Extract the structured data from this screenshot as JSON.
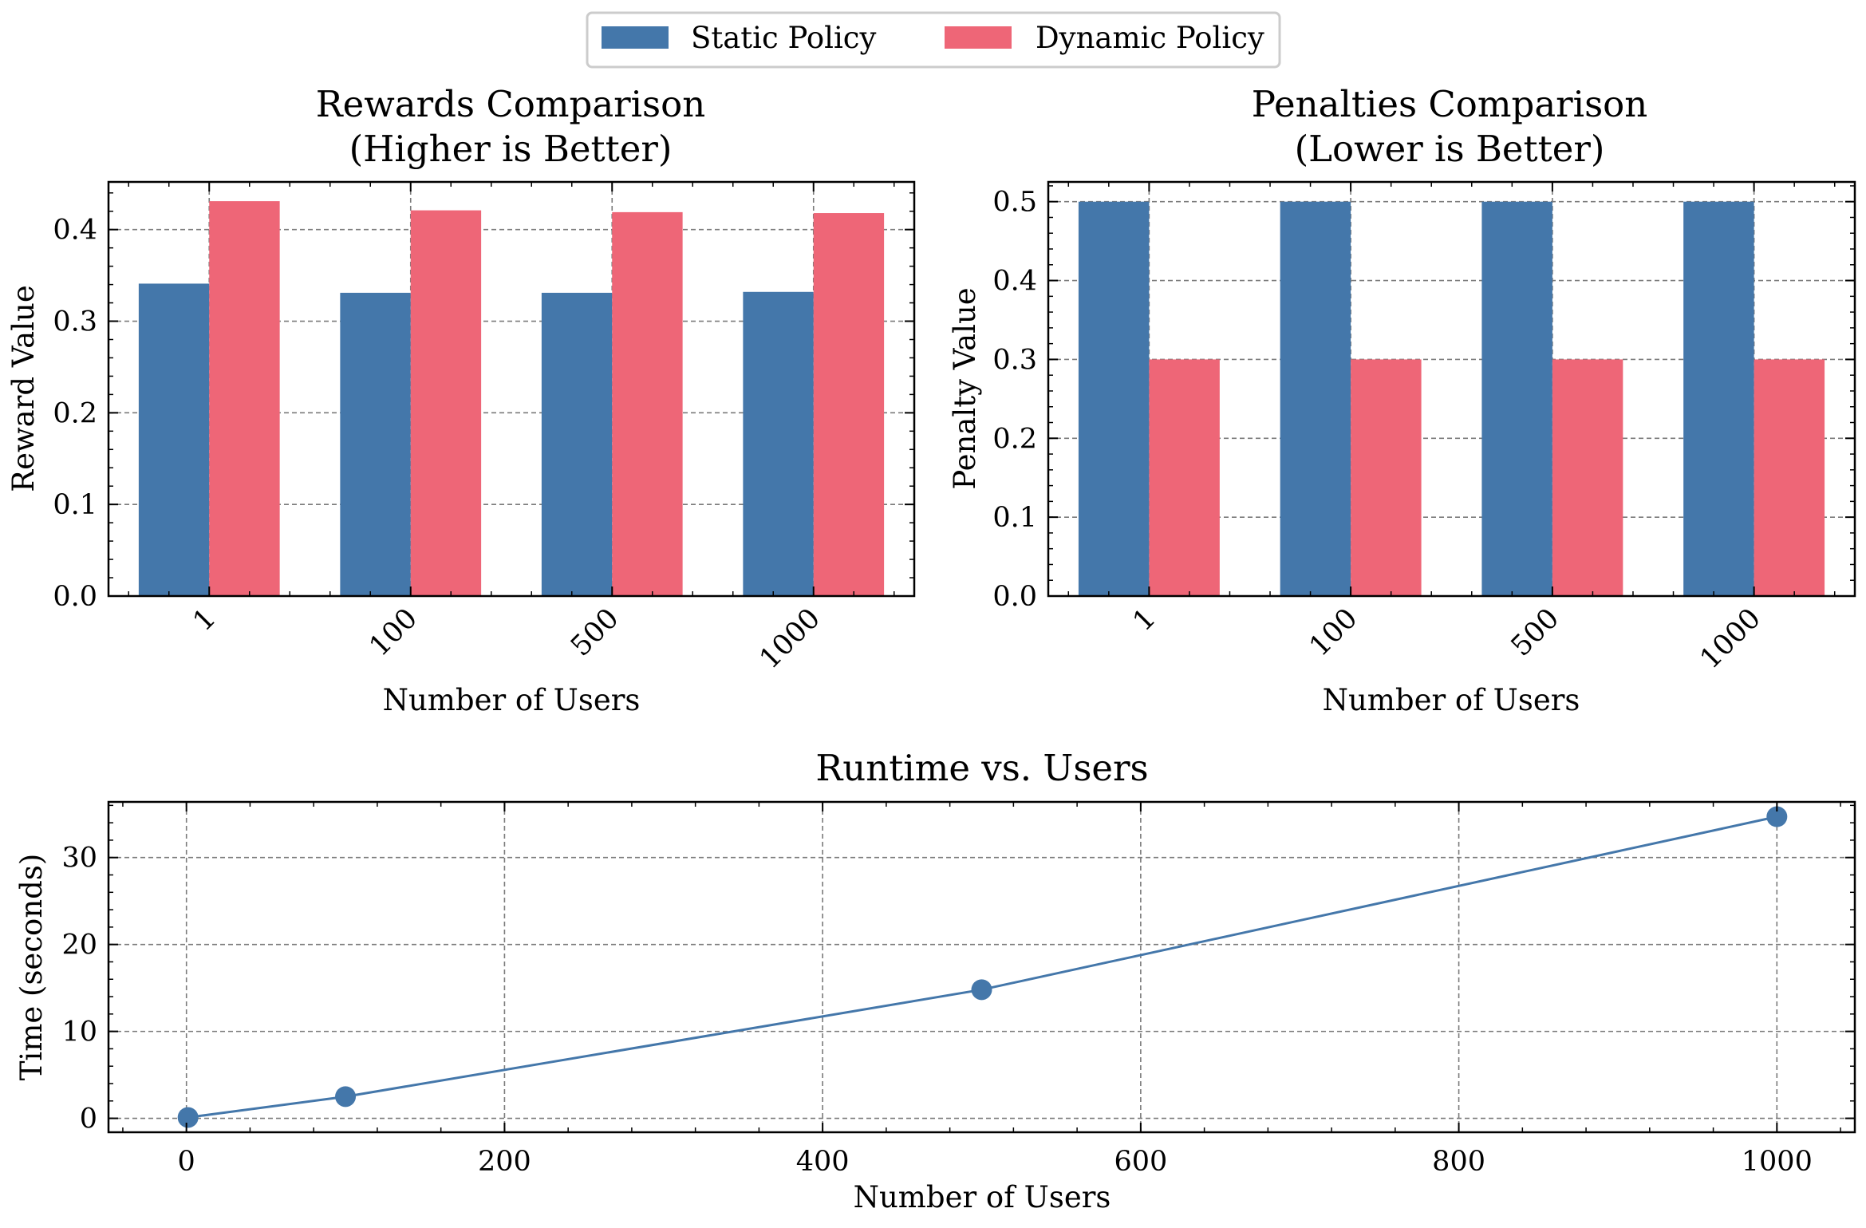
{
  "legend": {
    "entries": [
      {
        "label": "Static Policy",
        "color": "#4477AA"
      },
      {
        "label": "Dynamic Policy",
        "color": "#EE6677"
      }
    ],
    "placement": "top-center"
  },
  "chart_data": [
    {
      "type": "bar",
      "title_line1": "Rewards Comparison",
      "title_line2": "(Higher is Better)",
      "xlabel": "Number of Users",
      "ylabel": "Reward Value",
      "categories": [
        "1",
        "100",
        "500",
        "1000"
      ],
      "series": [
        {
          "name": "Static Policy",
          "values": [
            0.341,
            0.331,
            0.331,
            0.332
          ],
          "color": "#4477AA"
        },
        {
          "name": "Dynamic Policy",
          "values": [
            0.431,
            0.421,
            0.419,
            0.418
          ],
          "color": "#EE6677"
        }
      ],
      "ylim": [
        0,
        0.452
      ],
      "yticks": [
        "0.0",
        "0.1",
        "0.2",
        "0.3",
        "0.4"
      ],
      "grid": true
    },
    {
      "type": "bar",
      "title_line1": "Penalties Comparison",
      "title_line2": "(Lower is Better)",
      "xlabel": "Number of Users",
      "ylabel": "Penalty Value",
      "categories": [
        "1",
        "100",
        "500",
        "1000"
      ],
      "series": [
        {
          "name": "Static Policy",
          "values": [
            0.5,
            0.5,
            0.5,
            0.5
          ],
          "color": "#4477AA"
        },
        {
          "name": "Dynamic Policy",
          "values": [
            0.3,
            0.3,
            0.3,
            0.3
          ],
          "color": "#EE6677"
        }
      ],
      "ylim": [
        0,
        0.525
      ],
      "yticks": [
        "0.0",
        "0.1",
        "0.2",
        "0.3",
        "0.4",
        "0.5"
      ],
      "grid": true
    },
    {
      "type": "line",
      "title_line1": "Runtime vs. Users",
      "xlabel": "Number of Users",
      "ylabel": "Time (seconds)",
      "x": [
        1,
        100,
        500,
        1000
      ],
      "y": [
        0.1,
        2.5,
        14.8,
        34.7
      ],
      "color": "#4477AA",
      "xlim": [
        -49,
        1049
      ],
      "ylim": [
        -1.6,
        36.4
      ],
      "xticks": [
        "0",
        "200",
        "400",
        "600",
        "800",
        "1000"
      ],
      "yticks": [
        "0",
        "10",
        "20",
        "30"
      ],
      "grid": true
    }
  ]
}
